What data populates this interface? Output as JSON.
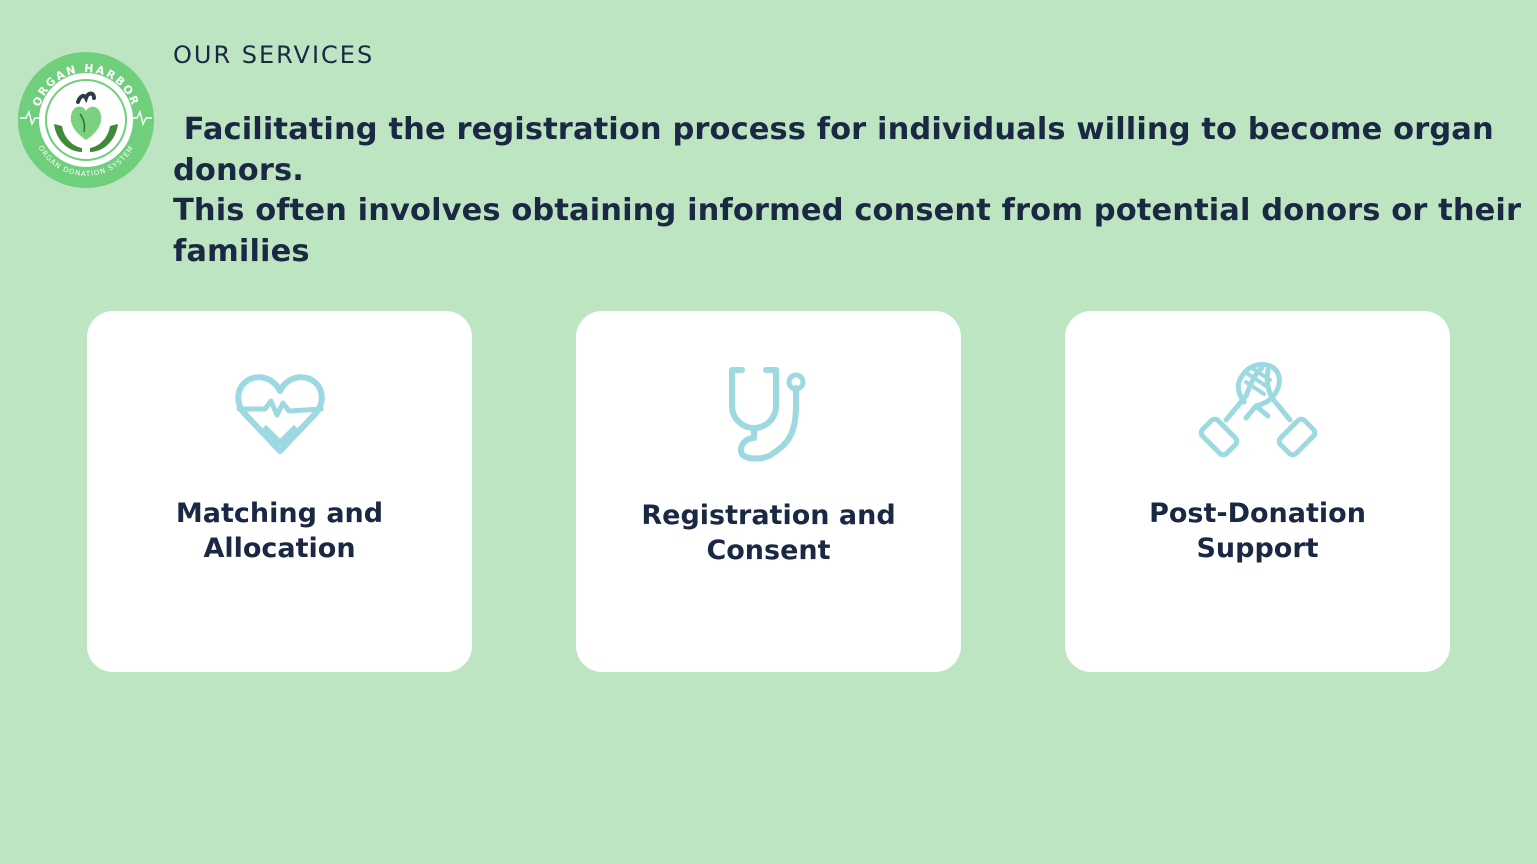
{
  "brand": {
    "logo_text_top": "ORGAN HARBOR",
    "logo_text_bottom": "ORGAN DONATION SYSTEM",
    "logo_icon": "heart-in-hands-icon"
  },
  "header": {
    "section_label": "OUR SERVICES",
    "intro_text": " Facilitating the registration process for individuals willing to become organ donors.\nThis often involves obtaining informed consent from potential donors or their\nfamilies"
  },
  "services": [
    {
      "icon": "heartbeat-icon",
      "title_line1": "Matching and",
      "title_line2": "Allocation"
    },
    {
      "icon": "stethoscope-icon",
      "title_line1": "Registration and",
      "title_line2": "Consent"
    },
    {
      "icon": "handshake-icon",
      "title_line1": "Post-Donation",
      "title_line2": "Support"
    }
  ],
  "colors": {
    "background": "#bee5c1",
    "card": "#ffffff",
    "text": "#1a2844",
    "icon": "#9dd9e0",
    "logo_ring": "#6fcf7c",
    "logo_green_dark": "#3f8a3a"
  }
}
